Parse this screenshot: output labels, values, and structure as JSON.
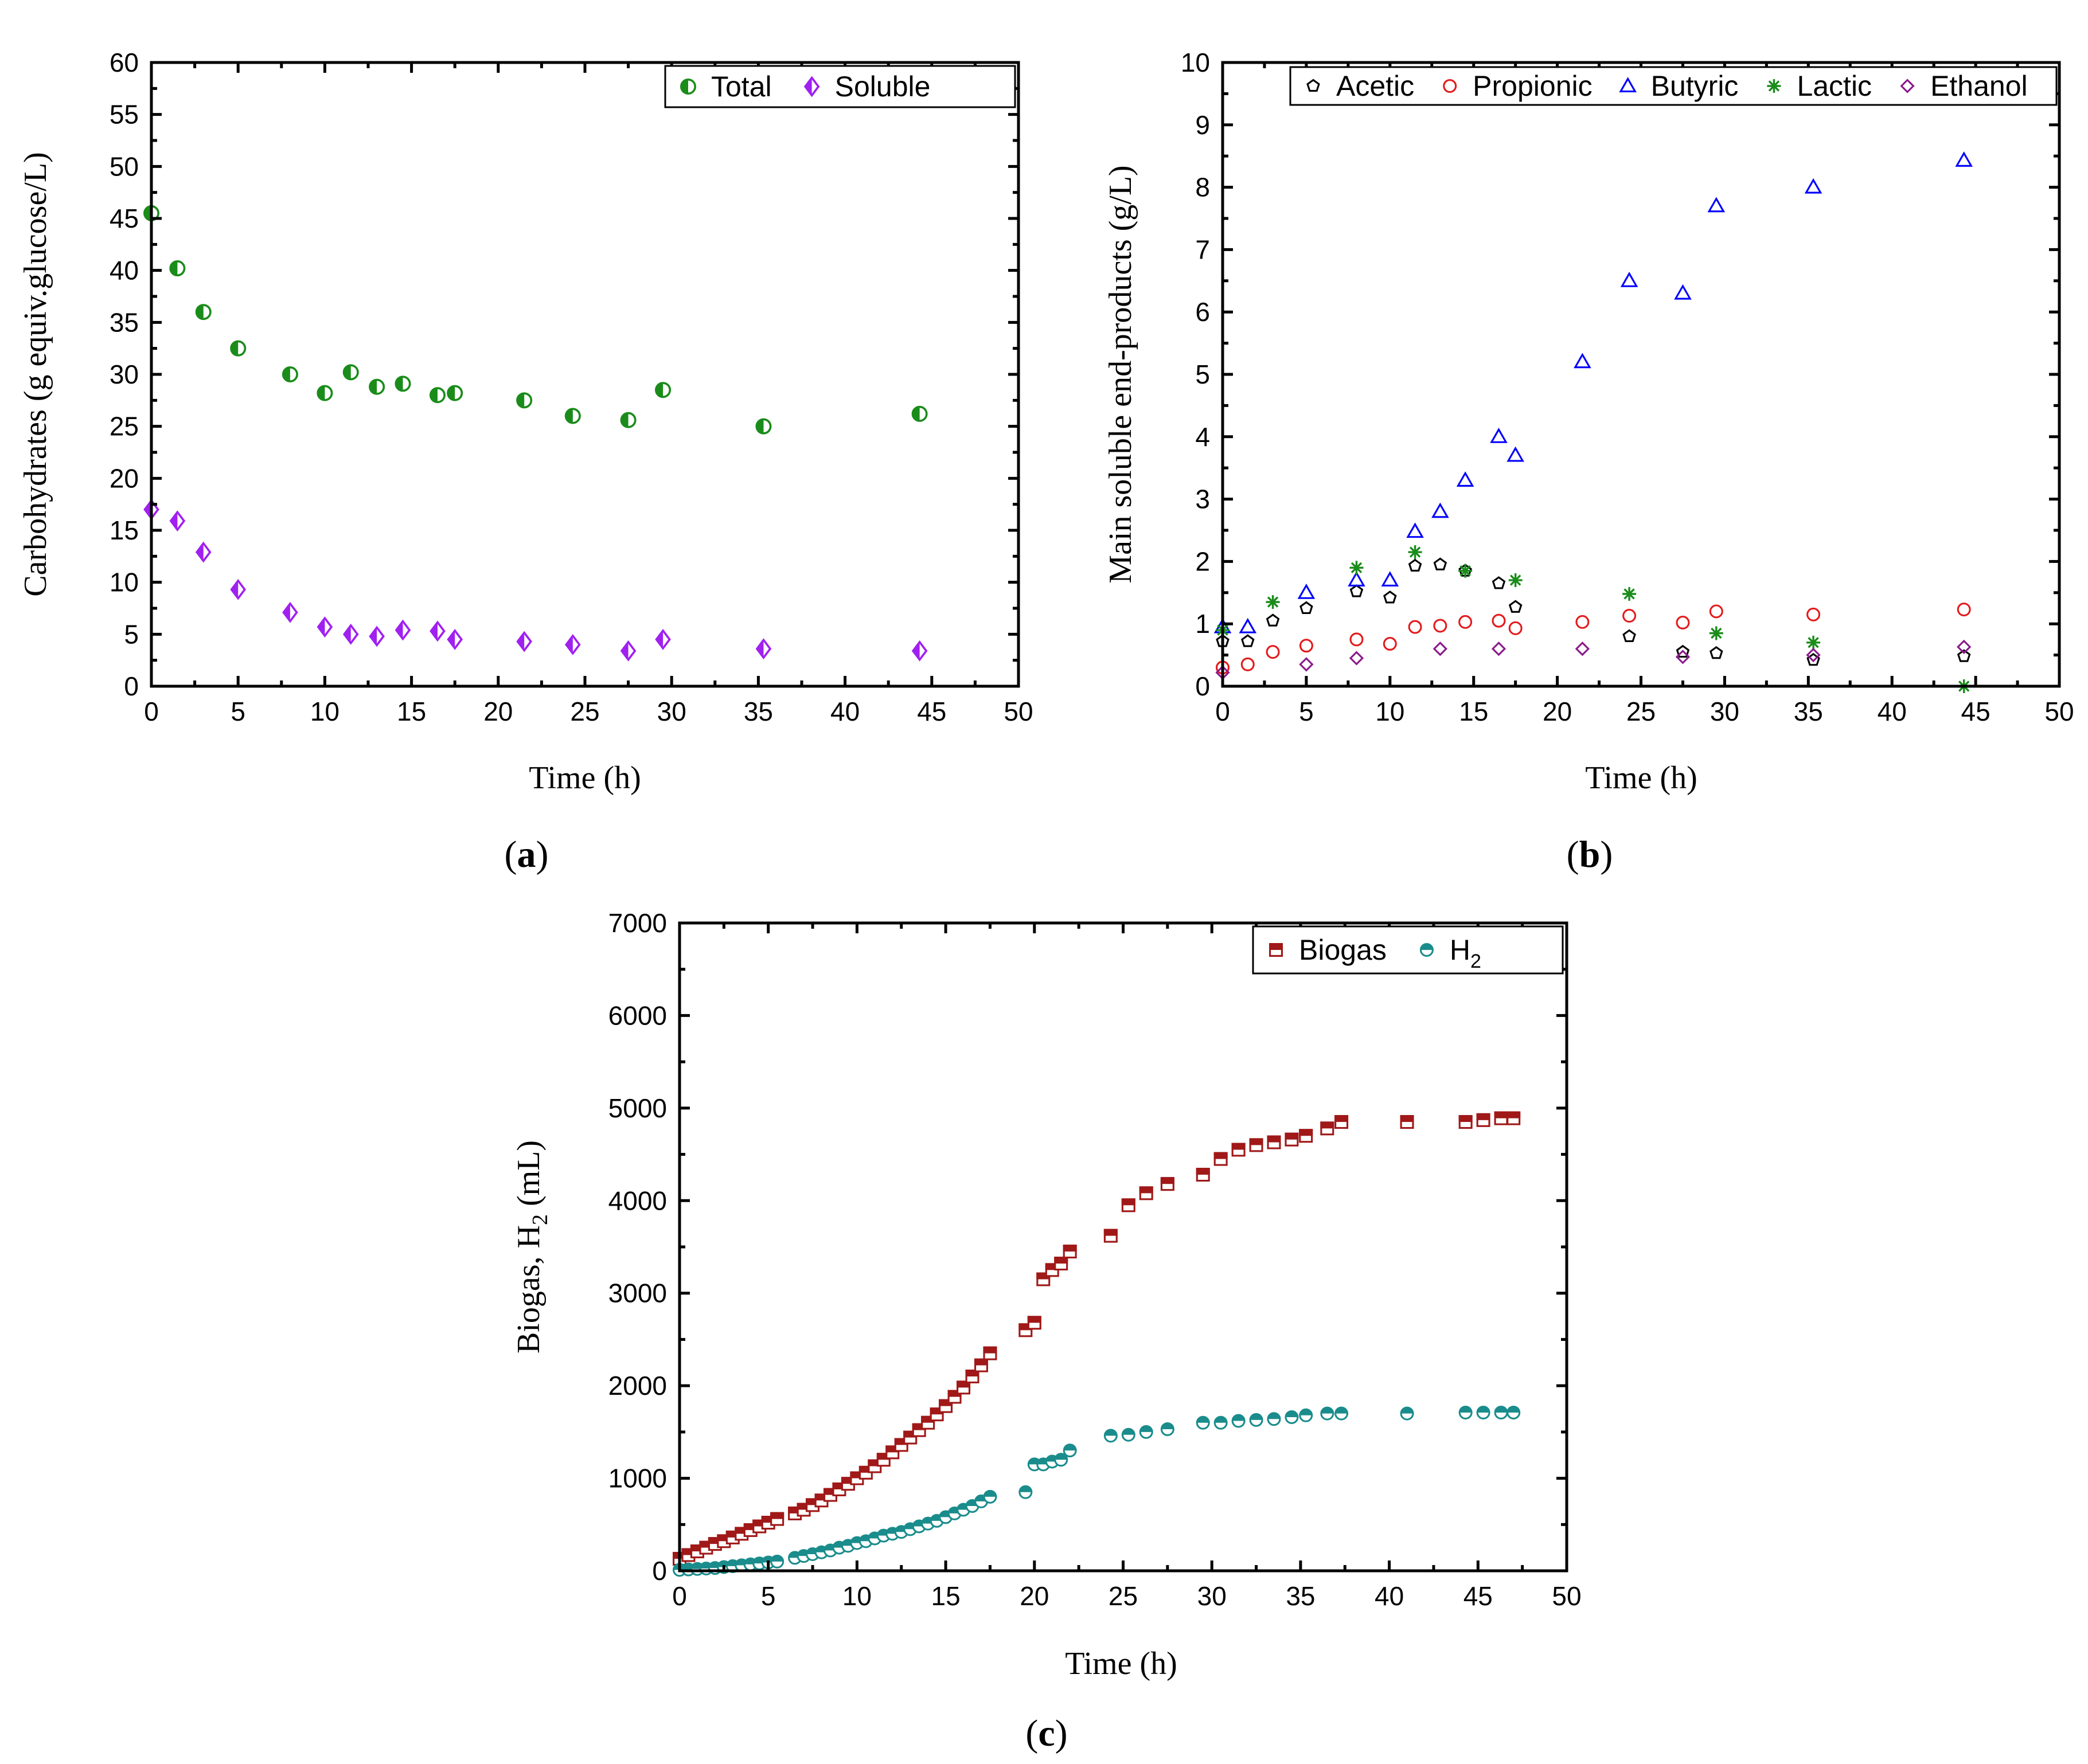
{
  "chart_data": [
    {
      "id": "a",
      "type": "scatter",
      "panel_label": "a",
      "xlabel": "Time (h)",
      "ylabel": "Carbohydrates (g equiv.glucose/L)",
      "xlim": [
        0,
        50
      ],
      "ylim": [
        0,
        60
      ],
      "xticks": [
        0,
        5,
        10,
        15,
        20,
        25,
        30,
        35,
        40,
        45,
        50
      ],
      "yticks": [
        0,
        5,
        10,
        15,
        20,
        25,
        30,
        35,
        40,
        45,
        50,
        55,
        60
      ],
      "legend_position": "top-right",
      "series": [
        {
          "name": "Total",
          "color": "#1a8c1a",
          "marker": "half-circle-left",
          "x": [
            0,
            1.5,
            3,
            5,
            8,
            10,
            11.5,
            13,
            14.5,
            16.5,
            17.5,
            21.5,
            24.3,
            27.5,
            29.5,
            35.3,
            44.3
          ],
          "y": [
            45.5,
            40.2,
            36,
            32.5,
            30,
            28.2,
            30.2,
            28.8,
            29.1,
            28,
            28.2,
            27.5,
            26,
            25.6,
            28.5,
            25,
            26.2
          ]
        },
        {
          "name": "Soluble",
          "color": "#a020f0",
          "marker": "half-diamond-left",
          "x": [
            0,
            1.5,
            3,
            5,
            8,
            10,
            11.5,
            13,
            14.5,
            16.5,
            17.5,
            21.5,
            24.3,
            27.5,
            29.5,
            35.3,
            44.3
          ],
          "y": [
            17,
            15.9,
            12.9,
            9.3,
            7.1,
            5.7,
            5,
            4.8,
            5.4,
            5.3,
            4.5,
            4.3,
            4,
            3.4,
            4.5,
            3.6,
            3.4
          ]
        }
      ]
    },
    {
      "id": "b",
      "type": "scatter",
      "panel_label": "b",
      "xlabel": "Time (h)",
      "ylabel": "Main soluble end-products (g/L)",
      "xlim": [
        0,
        50
      ],
      "ylim": [
        0,
        10
      ],
      "xticks": [
        0,
        5,
        10,
        15,
        20,
        25,
        30,
        35,
        40,
        45,
        50
      ],
      "yticks": [
        0,
        1,
        2,
        3,
        4,
        5,
        6,
        7,
        8,
        9,
        10
      ],
      "legend_position": "top",
      "series": [
        {
          "name": "Acetic",
          "color": "#000000",
          "marker": "pentagon-open",
          "x": [
            0,
            1.5,
            3,
            5,
            8,
            10,
            11.5,
            13,
            14.5,
            16.5,
            17.5,
            24.3,
            27.5,
            29.5,
            35.3,
            44.3
          ],
          "y": [
            0.72,
            0.72,
            1.05,
            1.25,
            1.52,
            1.42,
            1.93,
            1.95,
            1.85,
            1.65,
            1.27,
            0.8,
            0.55,
            0.53,
            0.42,
            0.48
          ]
        },
        {
          "name": "Propionic",
          "color": "#e41a1c",
          "marker": "circle-open",
          "x": [
            0,
            1.5,
            3,
            5,
            8,
            10,
            11.5,
            13,
            14.5,
            16.5,
            17.5,
            21.5,
            24.3,
            27.5,
            29.5,
            35.3,
            44.3
          ],
          "y": [
            0.3,
            0.35,
            0.55,
            0.65,
            0.75,
            0.68,
            0.95,
            0.97,
            1.03,
            1.05,
            0.93,
            1.03,
            1.13,
            1.02,
            1.2,
            1.15,
            1.23
          ]
        },
        {
          "name": "Butyric",
          "color": "#0000ff",
          "marker": "triangle-open",
          "x": [
            0,
            1.5,
            5,
            8,
            10,
            11.5,
            13,
            14.5,
            16.5,
            17.5,
            21.5,
            24.3,
            27.5,
            29.5,
            35.3,
            44.3
          ],
          "y": [
            0.95,
            0.95,
            1.5,
            1.7,
            1.7,
            2.48,
            2.8,
            3.3,
            4.0,
            3.7,
            5.2,
            6.5,
            6.3,
            7.7,
            8.0,
            8.43
          ]
        },
        {
          "name": "Lactic",
          "color": "#1a8c1a",
          "marker": "asterisk",
          "x": [
            0,
            3,
            8,
            11.5,
            14.5,
            17.5,
            24.3,
            29.5,
            35.3,
            44.3
          ],
          "y": [
            0.9,
            1.35,
            1.9,
            2.15,
            1.85,
            1.7,
            1.48,
            0.85,
            0.7,
            0.0
          ]
        },
        {
          "name": "Ethanol",
          "color": "#8b1a8b",
          "marker": "diamond-open",
          "x": [
            0,
            5,
            8,
            13,
            16.5,
            21.5,
            27.5,
            35.3,
            44.3
          ],
          "y": [
            0.22,
            0.35,
            0.45,
            0.6,
            0.6,
            0.6,
            0.47,
            0.5,
            0.63
          ]
        }
      ]
    },
    {
      "id": "c",
      "type": "scatter",
      "panel_label": "c",
      "xlabel": "Time (h)",
      "ylabel": "Biogas, H",
      "ylabel_sub": "2",
      "ylabel_tail": " (mL)",
      "xlim": [
        0,
        50
      ],
      "ylim": [
        0,
        7000
      ],
      "xticks": [
        0,
        5,
        10,
        15,
        20,
        25,
        30,
        35,
        40,
        45,
        50
      ],
      "yticks": [
        0,
        1000,
        2000,
        3000,
        4000,
        5000,
        6000,
        7000
      ],
      "legend_position": "top-right",
      "series": [
        {
          "name": "Biogas",
          "color": "#a01818",
          "marker": "half-square-top",
          "x": [
            0,
            0.5,
            1,
            1.5,
            2,
            2.5,
            3,
            3.5,
            4,
            4.5,
            5,
            5.5,
            6.5,
            7,
            7.5,
            8,
            8.5,
            9,
            9.5,
            10,
            10.5,
            11,
            11.5,
            12,
            12.5,
            13,
            13.5,
            14,
            14.5,
            15,
            15.5,
            16,
            16.5,
            17,
            17.5,
            19.5,
            20,
            20.5,
            21,
            21.5,
            22,
            24.3,
            25.3,
            26.3,
            27.5,
            29.5,
            30.5,
            31.5,
            32.5,
            33.5,
            34.5,
            35.3,
            36.5,
            37.3,
            41,
            44.3,
            45.3,
            46.3,
            47
          ],
          "y": [
            130,
            170,
            210,
            250,
            290,
            320,
            360,
            400,
            440,
            480,
            520,
            560,
            620,
            660,
            710,
            760,
            820,
            880,
            940,
            1000,
            1060,
            1130,
            1200,
            1280,
            1360,
            1440,
            1520,
            1600,
            1690,
            1780,
            1880,
            1980,
            2100,
            2220,
            2350,
            2600,
            2680,
            3150,
            3250,
            3320,
            3450,
            3620,
            3950,
            4080,
            4180,
            4280,
            4450,
            4550,
            4600,
            4630,
            4660,
            4700,
            4780,
            4850,
            4850,
            4850,
            4870,
            4890,
            4890
          ],
          "_note": ""
        },
        {
          "name": "H2",
          "label": "H",
          "label_sub": "2",
          "color": "#1a8c8c",
          "marker": "half-circle-top",
          "x": [
            0,
            0.5,
            1,
            1.5,
            2,
            2.5,
            3,
            3.5,
            4,
            4.5,
            5,
            5.5,
            6.5,
            7,
            7.5,
            8,
            8.5,
            9,
            9.5,
            10,
            10.5,
            11,
            11.5,
            12,
            12.5,
            13,
            13.5,
            14,
            14.5,
            15,
            15.5,
            16,
            16.5,
            17,
            17.5,
            19.5,
            20,
            20.5,
            21,
            21.5,
            22,
            24.3,
            25.3,
            26.3,
            27.5,
            29.5,
            30.5,
            31.5,
            32.5,
            33.5,
            34.5,
            35.3,
            36.5,
            37.3,
            41,
            44.3,
            45.3,
            46.3,
            47
          ],
          "y": [
            10,
            15,
            20,
            25,
            30,
            40,
            50,
            60,
            70,
            80,
            90,
            100,
            140,
            160,
            180,
            200,
            220,
            250,
            270,
            300,
            320,
            350,
            380,
            400,
            420,
            450,
            480,
            510,
            540,
            580,
            620,
            660,
            700,
            750,
            800,
            850,
            1150,
            1150,
            1180,
            1200,
            1300,
            1460,
            1470,
            1500,
            1530,
            1600,
            1600,
            1620,
            1630,
            1640,
            1660,
            1680,
            1700,
            1700,
            1700,
            1710,
            1710,
            1710,
            1710
          ]
        }
      ]
    }
  ]
}
